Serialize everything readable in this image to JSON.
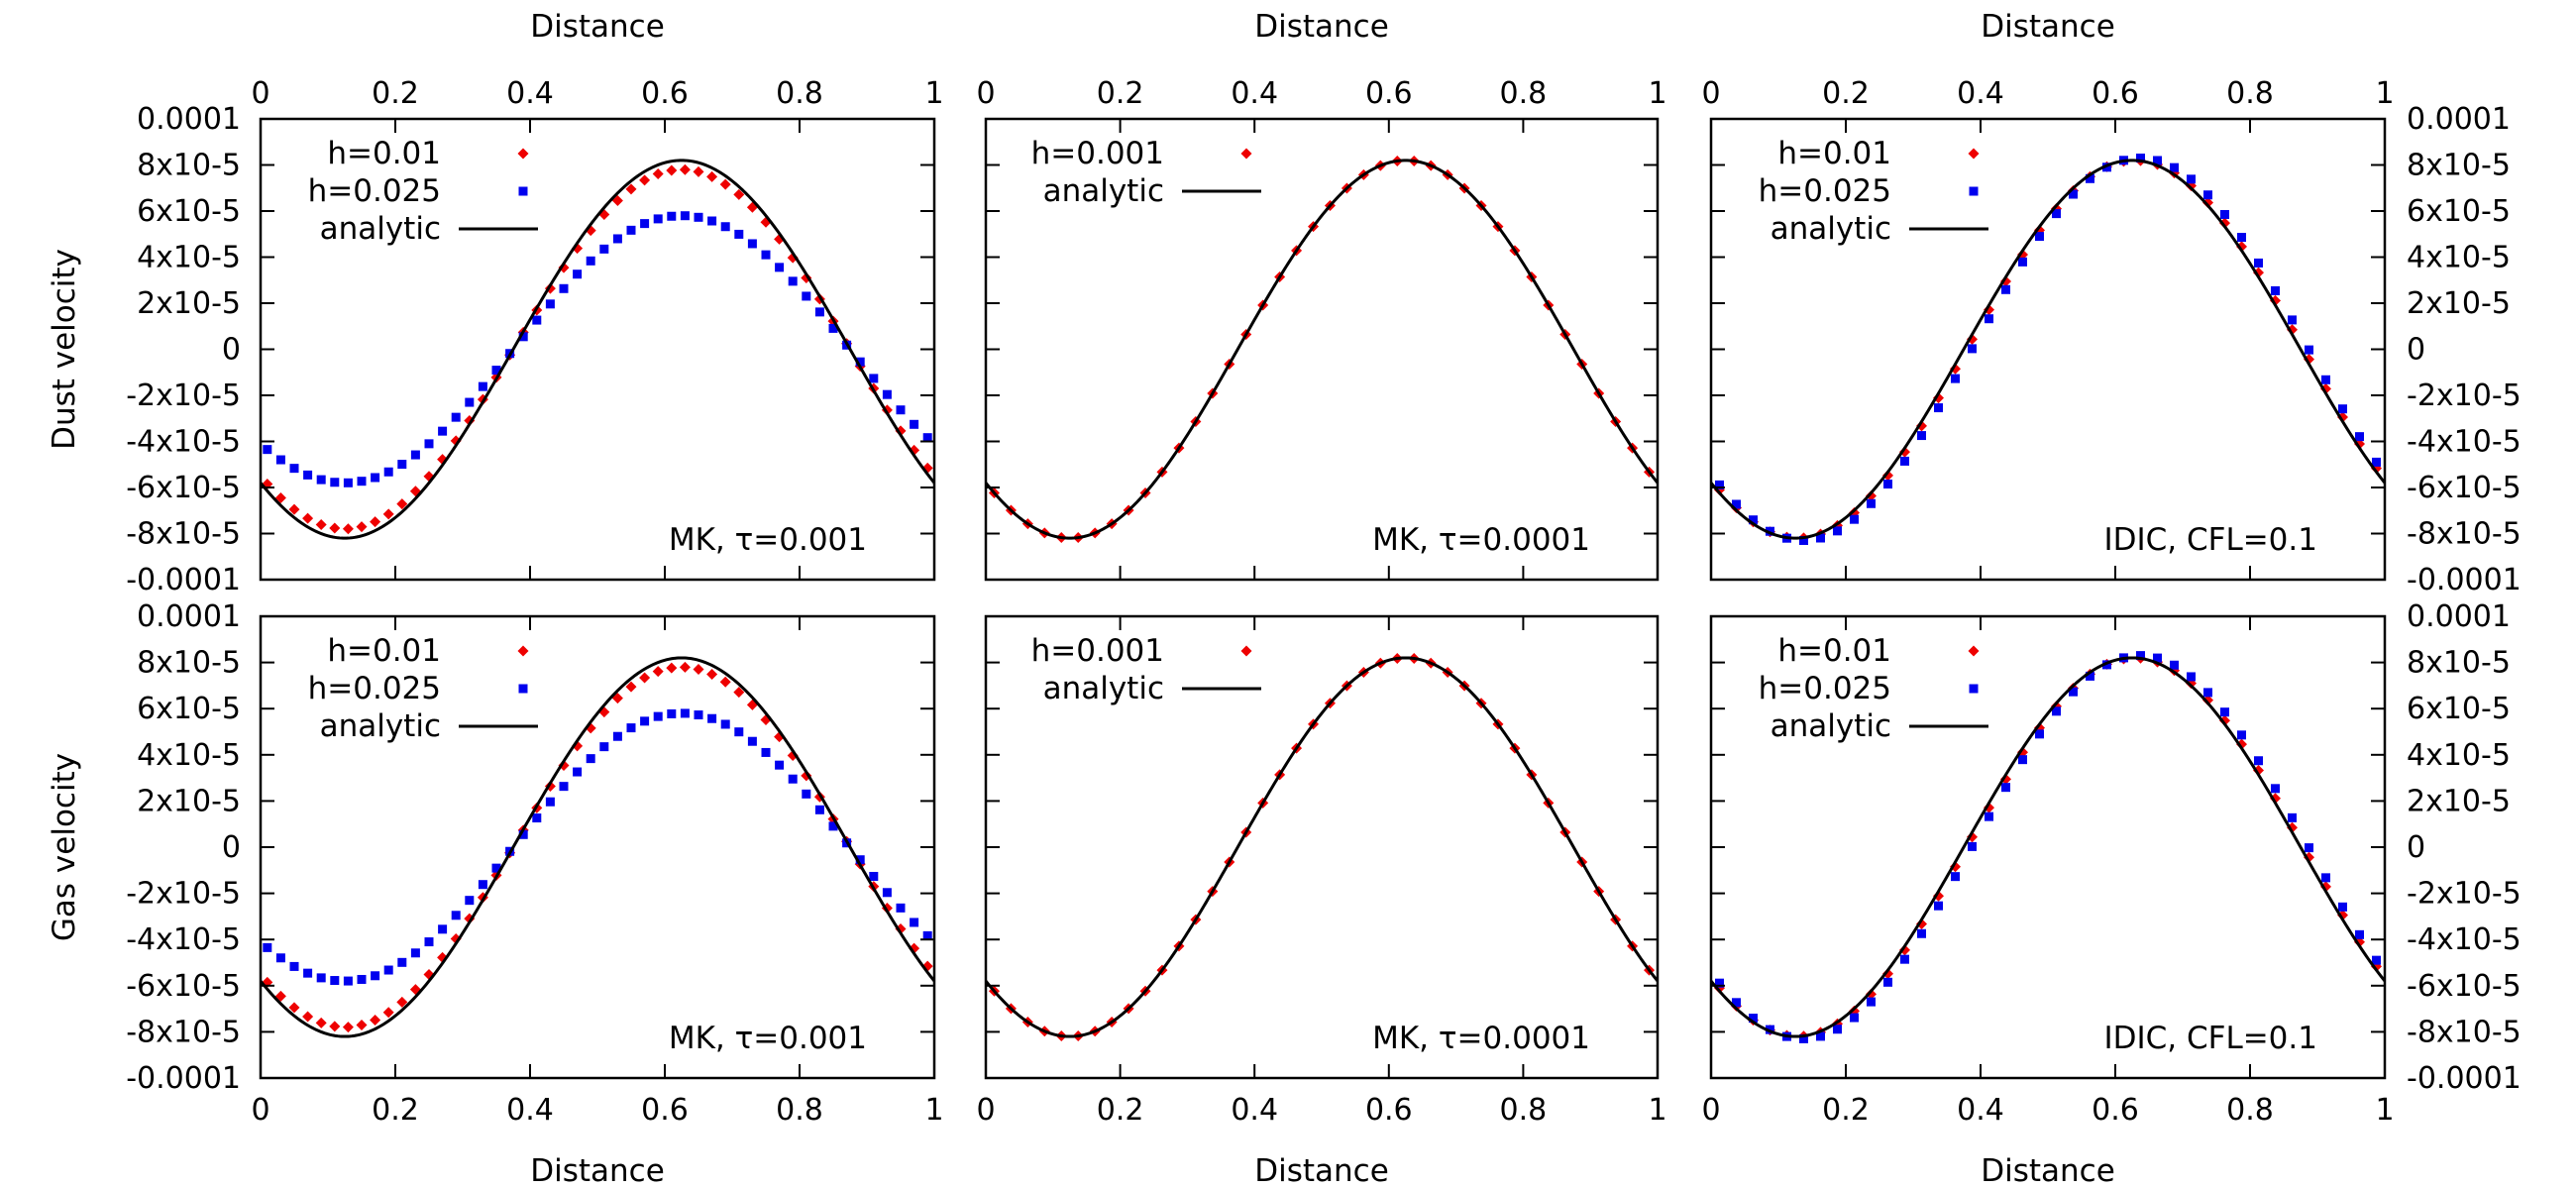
{
  "figure": {
    "x_axis_label": "Distance",
    "row_labels": [
      "Dust velocity",
      "Gas velocity"
    ],
    "x_ticks": [
      "0",
      "0.2",
      "0.4",
      "0.6",
      "0.8",
      "1"
    ],
    "y_ticks": [
      "-0.0001",
      "-8x10-5",
      "-6x10-5",
      "-4x10-5",
      "-2x10-5",
      "0",
      "2x10-5",
      "4x10-5",
      "6x10-5",
      "8x10-5",
      "0.0001"
    ]
  },
  "chart_data": [
    {
      "type": "scatter",
      "row": "dust",
      "panel": "left",
      "annotation": "MK, τ=0.001",
      "xlim": [
        0,
        1
      ],
      "ylim": [
        -0.0001,
        0.0001
      ],
      "series": [
        {
          "name": "h=0.01",
          "kind": "points",
          "color": "#ee0000",
          "shape": "diamond",
          "amplitude": 7.8e-05,
          "n": 50
        },
        {
          "name": "h=0.025",
          "kind": "points",
          "color": "#0000ee",
          "shape": "square",
          "amplitude": 5.8e-05,
          "n": 50
        },
        {
          "name": "analytic",
          "kind": "line",
          "color": "#000000",
          "amplitude": 8.2e-05
        }
      ]
    },
    {
      "type": "scatter",
      "row": "dust",
      "panel": "middle",
      "annotation": "MK, τ=0.0001",
      "xlim": [
        0,
        1
      ],
      "ylim": [
        -0.0001,
        0.0001
      ],
      "series": [
        {
          "name": "h=0.001",
          "kind": "points",
          "color": "#ee0000",
          "shape": "diamond",
          "amplitude": 8.2e-05,
          "n": 40
        },
        {
          "name": "analytic",
          "kind": "line",
          "color": "#000000",
          "amplitude": 8.2e-05
        }
      ]
    },
    {
      "type": "scatter",
      "row": "dust",
      "panel": "right",
      "annotation": "IDIC, CFL=0.1",
      "xlim": [
        0,
        1
      ],
      "ylim": [
        -0.0001,
        0.0001
      ],
      "series": [
        {
          "name": "h=0.01",
          "kind": "points",
          "color": "#ee0000",
          "shape": "diamond",
          "amplitude": 8.2e-05,
          "n": 40,
          "phase_shift": 0.004
        },
        {
          "name": "h=0.025",
          "kind": "points",
          "color": "#0000ee",
          "shape": "square",
          "amplitude": 8.3e-05,
          "n": 40,
          "phase_shift": 0.012
        },
        {
          "name": "analytic",
          "kind": "line",
          "color": "#000000",
          "amplitude": 8.2e-05
        }
      ]
    },
    {
      "type": "scatter",
      "row": "gas",
      "panel": "left",
      "annotation": "MK, τ=0.001",
      "xlim": [
        0,
        1
      ],
      "ylim": [
        -0.0001,
        0.0001
      ],
      "series": [
        {
          "name": "h=0.01",
          "kind": "points",
          "color": "#ee0000",
          "shape": "diamond",
          "amplitude": 7.8e-05,
          "n": 50
        },
        {
          "name": "h=0.025",
          "kind": "points",
          "color": "#0000ee",
          "shape": "square",
          "amplitude": 5.8e-05,
          "n": 50
        },
        {
          "name": "analytic",
          "kind": "line",
          "color": "#000000",
          "amplitude": 8.2e-05
        }
      ]
    },
    {
      "type": "scatter",
      "row": "gas",
      "panel": "middle",
      "annotation": "MK, τ=0.0001",
      "xlim": [
        0,
        1
      ],
      "ylim": [
        -0.0001,
        0.0001
      ],
      "series": [
        {
          "name": "h=0.001",
          "kind": "points",
          "color": "#ee0000",
          "shape": "diamond",
          "amplitude": 8.2e-05,
          "n": 40
        },
        {
          "name": "analytic",
          "kind": "line",
          "color": "#000000",
          "amplitude": 8.2e-05
        }
      ]
    },
    {
      "type": "scatter",
      "row": "gas",
      "panel": "right",
      "annotation": "IDIC, CFL=0.1",
      "xlim": [
        0,
        1
      ],
      "ylim": [
        -0.0001,
        0.0001
      ],
      "series": [
        {
          "name": "h=0.01",
          "kind": "points",
          "color": "#ee0000",
          "shape": "diamond",
          "amplitude": 8.2e-05,
          "n": 40,
          "phase_shift": 0.004
        },
        {
          "name": "h=0.025",
          "kind": "points",
          "color": "#0000ee",
          "shape": "square",
          "amplitude": 8.3e-05,
          "n": 40,
          "phase_shift": 0.012
        },
        {
          "name": "analytic",
          "kind": "line",
          "color": "#000000",
          "amplitude": 8.2e-05
        }
      ]
    }
  ]
}
